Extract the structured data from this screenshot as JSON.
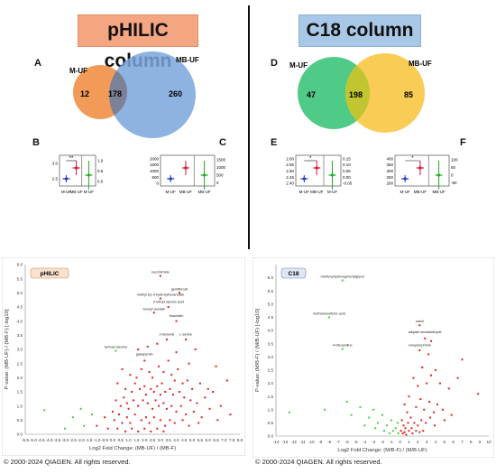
{
  "headers": {
    "left": "pHILIC column",
    "right": "C18 column"
  },
  "panel_letters": [
    "A",
    "B",
    "C",
    "D",
    "E",
    "F"
  ],
  "copyright_left": "© 2000-2024 QIAGEN. All rights reserved.",
  "copyright_right": "© 2000-2024 QIAGEN. All rights reserved.",
  "colors": {
    "left_header": "#f4a582",
    "right_header": "#a9c8e8",
    "venn_mufl": "#f08a3c",
    "venn_mbufl": "#7aa6dc",
    "venn_mufr": "#3cc47a",
    "venn_mbufr": "#f7c742",
    "volcano_up": "#e02020",
    "volcano_down": "#44cc44"
  },
  "chart_data": [
    {
      "type": "venn",
      "panel": "A",
      "sets": [
        {
          "name": "M-UF",
          "only": 12
        },
        {
          "name": "MB-UF",
          "only": 260
        }
      ],
      "intersection": 178
    },
    {
      "type": "venn",
      "panel": "D",
      "sets": [
        {
          "name": "M-UF",
          "only": 47
        },
        {
          "name": "MB-UF",
          "only": 85
        }
      ],
      "intersection": 198
    },
    {
      "type": "scatter",
      "panel": "B",
      "categories": [
        "M-UF",
        "MB-UF",
        "M-UF"
      ],
      "ylabel_left": "",
      "ylabel_right": "MB Log(value) / replicate",
      "left_ticks": [
        "3.0",
        "2.5"
      ],
      "right_ticks": [
        "1.0",
        "0.5",
        "0.0"
      ],
      "significance": "**",
      "means": [
        2.48,
        2.93,
        0.3
      ]
    },
    {
      "type": "scatter",
      "panel": "C",
      "categories": [
        "M-UF",
        "MB-UF",
        "MB-UF"
      ],
      "ylabel_right": "No. of compounds / MB peak rating",
      "left_ticks": [
        "2000",
        "1500",
        "1000",
        "500",
        "0"
      ],
      "right_ticks": [
        "1500",
        "1000",
        "500",
        "0"
      ],
      "means": [
        300,
        900,
        600
      ]
    },
    {
      "type": "scatter",
      "panel": "E",
      "categories": [
        "M-UF",
        "MB-UF",
        "M-UF"
      ],
      "ylabel_right": "MB Log(value) / replicate",
      "left_ticks": [
        "2.60",
        "2.55",
        "2.50",
        "2.45",
        "2.40"
      ],
      "right_ticks": [
        "0.15",
        "0.10",
        "0.05",
        "0.00",
        "-0.05"
      ],
      "significance": "*",
      "means": [
        2.485,
        2.565,
        0.04
      ]
    },
    {
      "type": "scatter",
      "panel": "F",
      "categories": [
        "M-UF",
        "MB-UF",
        "MB-UF"
      ],
      "ylabel_right": "No. of compounds / MB peak rating",
      "left_ticks": [
        "400",
        "350",
        "300",
        "250",
        "200"
      ],
      "right_ticks": [
        "100",
        "50",
        "0",
        "-50"
      ],
      "significance": "*",
      "means": [
        305,
        360,
        30
      ]
    },
    {
      "type": "scatter",
      "panel": "volcano-pHILIC",
      "title": "pHILIC",
      "xlabel": "Log2 Fold Change: (MB-UF) / (MB-F)",
      "ylabel": "P-value: (MB-UF) / (MB-F) [-log10]",
      "xlim": [
        -5.5,
        8.0
      ],
      "ylim": [
        0,
        6.0
      ],
      "xticks": [
        -5.5,
        -5.0,
        -4.5,
        -4.0,
        -3.5,
        -3.0,
        -2.5,
        -2.0,
        -1.5,
        -1.0,
        -0.5,
        0.0,
        0.5,
        1.0,
        1.5,
        2.0,
        2.5,
        3.0,
        3.5,
        4.0,
        4.5,
        5.0,
        5.5,
        6.0,
        6.5,
        7.0,
        7.5,
        8.0
      ],
      "yticks": [
        0.0,
        0.5,
        1.0,
        1.5,
        2.0,
        2.5,
        3.0,
        3.5,
        4.0,
        4.5,
        5.0,
        5.5,
        6.0
      ],
      "labels": [
        {
          "text": "succinimide",
          "x": 3.0,
          "y": 5.6
        },
        {
          "text": "gemfibrozil",
          "x": 4.2,
          "y": 5.0
        },
        {
          "text": "methyl (s)-3-hydroxyhexanoate",
          "x": 3.0,
          "y": 4.8
        },
        {
          "text": "3-nitropropionic acid",
          "x": 3.5,
          "y": 4.55
        },
        {
          "text": "benzyl acetate",
          "x": 2.6,
          "y": 4.3
        },
        {
          "text": "traumatin",
          "x": 4.0,
          "y": 4.05
        },
        {
          "text": "2-hexenal",
          "x": 3.4,
          "y": 3.4
        },
        {
          "text": "L-serine",
          "x": 4.6,
          "y": 3.4
        },
        {
          "text": "furfuryl alcohol",
          "x": 0.2,
          "y": 2.95
        },
        {
          "text": "gabapentin",
          "x": 2.0,
          "y": 2.7
        }
      ],
      "red_points": [
        [
          3.0,
          5.6
        ],
        [
          4.2,
          5.0
        ],
        [
          3.0,
          4.8
        ],
        [
          3.5,
          4.5
        ],
        [
          2.6,
          4.3
        ],
        [
          4.0,
          4.0
        ],
        [
          3.4,
          3.35
        ],
        [
          4.6,
          3.35
        ],
        [
          2.0,
          2.6
        ],
        [
          1.6,
          3.0
        ],
        [
          2.2,
          3.1
        ],
        [
          2.8,
          3.2
        ],
        [
          4.0,
          2.9
        ],
        [
          4.8,
          2.5
        ],
        [
          5.2,
          3.0
        ],
        [
          6.5,
          2.4
        ],
        [
          7.2,
          1.9
        ],
        [
          6.0,
          1.6
        ],
        [
          0.6,
          2.3
        ],
        [
          1.1,
          2.1
        ],
        [
          1.5,
          2.0
        ],
        [
          1.8,
          2.3
        ],
        [
          2.3,
          2.2
        ],
        [
          2.5,
          2.0
        ],
        [
          2.9,
          2.4
        ],
        [
          3.2,
          2.2
        ],
        [
          3.5,
          2.6
        ],
        [
          3.7,
          2.1
        ],
        [
          3.9,
          1.9
        ],
        [
          4.1,
          2.3
        ],
        [
          4.4,
          1.8
        ],
        [
          4.7,
          1.9
        ],
        [
          5.0,
          1.6
        ],
        [
          5.5,
          1.8
        ],
        [
          5.8,
          1.3
        ],
        [
          6.3,
          1.5
        ],
        [
          0.3,
          1.8
        ],
        [
          0.8,
          1.6
        ],
        [
          1.2,
          1.5
        ],
        [
          1.4,
          1.8
        ],
        [
          1.7,
          1.6
        ],
        [
          2.0,
          1.7
        ],
        [
          2.1,
          1.4
        ],
        [
          2.4,
          1.6
        ],
        [
          2.6,
          1.5
        ],
        [
          2.8,
          1.7
        ],
        [
          3.0,
          1.4
        ],
        [
          3.1,
          1.8
        ],
        [
          3.3,
          1.5
        ],
        [
          3.6,
          1.6
        ],
        [
          3.8,
          1.4
        ],
        [
          4.2,
          1.5
        ],
        [
          4.5,
          1.3
        ],
        [
          4.9,
          1.2
        ],
        [
          5.3,
          1.1
        ],
        [
          6.8,
          1.0
        ],
        [
          7.4,
          0.7
        ],
        [
          0.2,
          1.2
        ],
        [
          0.5,
          1.0
        ],
        [
          0.7,
          1.3
        ],
        [
          0.9,
          1.1
        ],
        [
          1.0,
          0.9
        ],
        [
          1.3,
          1.2
        ],
        [
          1.6,
          1.0
        ],
        [
          1.9,
          1.2
        ],
        [
          2.2,
          1.1
        ],
        [
          2.5,
          0.9
        ],
        [
          2.7,
          1.2
        ],
        [
          2.9,
          1.0
        ],
        [
          3.2,
          1.1
        ],
        [
          3.4,
          0.9
        ],
        [
          3.7,
          1.0
        ],
        [
          4.0,
          0.8
        ],
        [
          4.3,
          1.0
        ],
        [
          4.6,
          0.7
        ],
        [
          5.1,
          0.8
        ],
        [
          5.6,
          0.6
        ],
        [
          6.1,
          0.9
        ],
        [
          -0.5,
          0.6
        ],
        [
          0.0,
          0.8
        ],
        [
          0.1,
          0.5
        ],
        [
          0.4,
          0.7
        ],
        [
          0.6,
          0.4
        ],
        [
          0.9,
          0.6
        ],
        [
          1.1,
          0.4
        ],
        [
          1.4,
          0.7
        ],
        [
          1.8,
          0.5
        ],
        [
          2.1,
          0.6
        ],
        [
          2.3,
          0.4
        ],
        [
          2.6,
          0.6
        ],
        [
          3.0,
          0.5
        ],
        [
          3.3,
          0.3
        ],
        [
          3.6,
          0.5
        ],
        [
          3.9,
          0.4
        ],
        [
          4.4,
          0.5
        ],
        [
          4.8,
          0.3
        ],
        [
          5.4,
          0.4
        ],
        [
          6.6,
          0.5
        ],
        [
          -1.0,
          0.3
        ],
        [
          -0.3,
          0.2
        ],
        [
          0.3,
          0.2
        ],
        [
          0.8,
          0.1
        ],
        [
          1.2,
          0.2
        ],
        [
          1.6,
          0.1
        ],
        [
          2.0,
          0.2
        ],
        [
          2.4,
          0.1
        ],
        [
          2.8,
          0.2
        ],
        [
          3.2,
          0.1
        ]
      ],
      "green_points": [
        [
          0.2,
          2.95
        ],
        [
          -4.3,
          0.85
        ],
        [
          -2.5,
          0.6
        ],
        [
          -1.8,
          0.3
        ],
        [
          -3.0,
          0.2
        ],
        [
          -2.0,
          0.9
        ],
        [
          -1.3,
          0.7
        ]
      ]
    },
    {
      "type": "scatter",
      "panel": "volcano-C18",
      "title": "C18",
      "xlabel": "Log2 Fold Change: (M/B-F) / (M/B-UF)",
      "ylabel": "P-value: (M/B-F) / (M/B-UF) [-log10]",
      "xlim": [
        -14,
        10
      ],
      "ylim": [
        0,
        6.5
      ],
      "xticks": [
        -14,
        -13,
        -12,
        -11,
        -10,
        -9,
        -8,
        -7,
        -6,
        -5,
        -4,
        -3,
        -2,
        -1,
        0,
        1,
        2,
        3,
        4,
        5,
        6,
        7,
        8,
        9,
        10
      ],
      "yticks": [
        0.0,
        0.5,
        1.0,
        1.5,
        2.0,
        2.5,
        3.0,
        3.5,
        4.0,
        4.5,
        5.0,
        5.5,
        6.0
      ],
      "labels": [
        {
          "text": "methoxyhydroxyphenylglycol",
          "x": -6.5,
          "y": 5.9
        },
        {
          "text": "methanesulfonic acid",
          "x": -8.0,
          "y": 4.5
        },
        {
          "text": "uracil",
          "x": 2.2,
          "y": 4.2
        },
        {
          "text": "adipate semialdehyde",
          "x": 2.8,
          "y": 3.8
        },
        {
          "text": "4-nitroaniline",
          "x": -6.5,
          "y": 3.3
        },
        {
          "text": "norepinephrine",
          "x": 2.2,
          "y": 3.3
        }
      ],
      "red_points": [
        [
          2.2,
          4.2
        ],
        [
          2.8,
          3.7
        ],
        [
          2.2,
          3.25
        ],
        [
          3.5,
          3.6
        ],
        [
          3.2,
          3.1
        ],
        [
          7.0,
          2.9
        ],
        [
          8.8,
          1.6
        ],
        [
          6.5,
          2.2
        ],
        [
          5.5,
          1.8
        ],
        [
          4.5,
          2.0
        ],
        [
          4.0,
          2.5
        ],
        [
          3.5,
          2.3
        ],
        [
          3.0,
          2.0
        ],
        [
          2.5,
          2.6
        ],
        [
          2.0,
          1.9
        ],
        [
          1.5,
          2.2
        ],
        [
          1.0,
          1.5
        ],
        [
          0.5,
          1.2
        ],
        [
          0.8,
          0.9
        ],
        [
          1.2,
          0.7
        ],
        [
          1.8,
          1.1
        ],
        [
          2.3,
          1.4
        ],
        [
          2.7,
          1.0
        ],
        [
          3.3,
          1.3
        ],
        [
          3.8,
          0.9
        ],
        [
          4.2,
          1.2
        ],
        [
          4.8,
          1.0
        ],
        [
          5.0,
          0.6
        ],
        [
          5.8,
          0.8
        ],
        [
          0.2,
          0.6
        ],
        [
          0.4,
          0.4
        ],
        [
          0.6,
          0.3
        ],
        [
          0.9,
          0.5
        ],
        [
          1.3,
          0.3
        ],
        [
          1.6,
          0.5
        ],
        [
          2.0,
          0.4
        ],
        [
          2.4,
          0.6
        ],
        [
          2.9,
          0.5
        ],
        [
          3.4,
          0.7
        ],
        [
          3.9,
          0.4
        ],
        [
          0.1,
          0.2
        ],
        [
          0.3,
          0.1
        ],
        [
          0.5,
          0.15
        ],
        [
          0.7,
          0.05
        ],
        [
          1.0,
          0.2
        ],
        [
          1.4,
          0.1
        ],
        [
          1.8,
          0.2
        ],
        [
          2.2,
          0.15
        ],
        [
          2.6,
          0.2
        ]
      ],
      "green_points": [
        [
          -6.5,
          5.9
        ],
        [
          -8.0,
          4.5
        ],
        [
          -6.5,
          3.3
        ],
        [
          -12.5,
          0.9
        ],
        [
          -8.5,
          1.0
        ],
        [
          -6.0,
          1.3
        ],
        [
          -5.5,
          0.8
        ],
        [
          -4.5,
          1.1
        ],
        [
          -3.5,
          0.7
        ],
        [
          -3.0,
          1.0
        ],
        [
          -2.5,
          0.5
        ],
        [
          -2.0,
          0.8
        ],
        [
          -1.5,
          0.4
        ],
        [
          -1.0,
          0.6
        ],
        [
          -0.5,
          0.3
        ],
        [
          -0.3,
          0.5
        ],
        [
          -0.8,
          0.2
        ],
        [
          -1.8,
          0.2
        ],
        [
          -2.8,
          0.3
        ],
        [
          -4.0,
          0.4
        ],
        [
          -0.2,
          0.1
        ],
        [
          -1.2,
          0.1
        ]
      ]
    }
  ]
}
